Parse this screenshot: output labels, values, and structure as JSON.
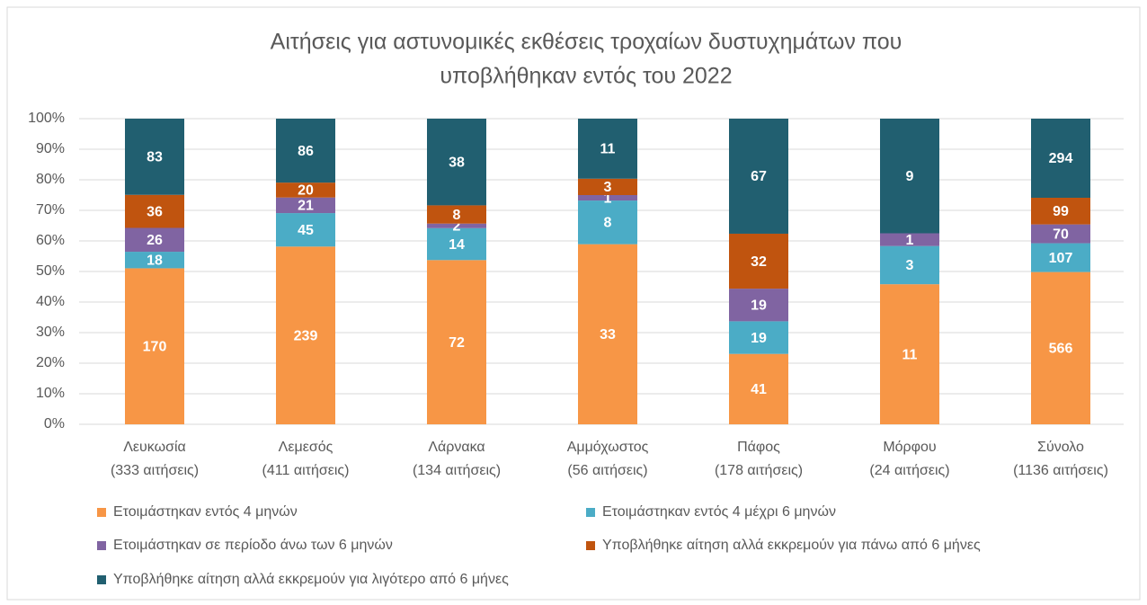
{
  "chart_data": {
    "type": "bar",
    "stacking": "percent",
    "title": [
      "Αιτήσεις για αστυνομικές εκθέσεις τροχαίων δυστυχημάτων που",
      "υποβλήθηκαν εντός του 2022"
    ],
    "categories": [
      [
        "Λευκωσία",
        "(333 αιτήσεις)"
      ],
      [
        "Λεμεσός",
        "(411 αιτήσεις)"
      ],
      [
        "Λάρνακα",
        "(134 αιτήσεις)"
      ],
      [
        "Αμμόχωστος",
        "(56 αιτήσεις)"
      ],
      [
        "Πάφος",
        "(178 αιτήσεις)"
      ],
      [
        "Μόρφου",
        "(24 αιτήσεις)"
      ],
      [
        "Σύνολο",
        "(1136 αιτήσεις)"
      ]
    ],
    "series": [
      {
        "name": "Ετοιμάστηκαν εντός 4 μηνών",
        "color": "#f79646",
        "values": [
          170,
          239,
          72,
          33,
          41,
          11,
          566
        ]
      },
      {
        "name": "Ετοιμάστηκαν εντός 4 μέχρι 6 μηνών",
        "color": "#4bacc6",
        "values": [
          18,
          45,
          14,
          8,
          19,
          3,
          107
        ]
      },
      {
        "name": "Ετοιμάστηκαν σε περίοδο άνω των 6 μηνών",
        "color": "#8064a2",
        "values": [
          26,
          21,
          2,
          1,
          19,
          1,
          70
        ]
      },
      {
        "name": "Υποβλήθηκε αίτηση αλλά εκκρεμούν για πάνω από 6 μήνες",
        "color": "#c0540f",
        "values": [
          36,
          20,
          8,
          3,
          32,
          0,
          99
        ]
      },
      {
        "name": "Υποβλήθηκε αίτηση αλλά εκκρεμούν για λιγότερο από 6 μήνες",
        "color": "#215f70",
        "values": [
          83,
          86,
          38,
          11,
          67,
          9,
          294
        ]
      }
    ],
    "ylim": [
      0,
      100
    ],
    "yticks": [
      {
        "value": 0,
        "label": "0%"
      },
      {
        "value": 10,
        "label": "10%"
      },
      {
        "value": 20,
        "label": "20%"
      },
      {
        "value": 30,
        "label": "30%"
      },
      {
        "value": 40,
        "label": "40%"
      },
      {
        "value": 50,
        "label": "50%"
      },
      {
        "value": 60,
        "label": "60%"
      },
      {
        "value": 70,
        "label": "70%"
      },
      {
        "value": 80,
        "label": "80%"
      },
      {
        "value": 90,
        "label": "90%"
      },
      {
        "value": 100,
        "label": "100%"
      }
    ],
    "grid": true,
    "legend": "bottom"
  }
}
